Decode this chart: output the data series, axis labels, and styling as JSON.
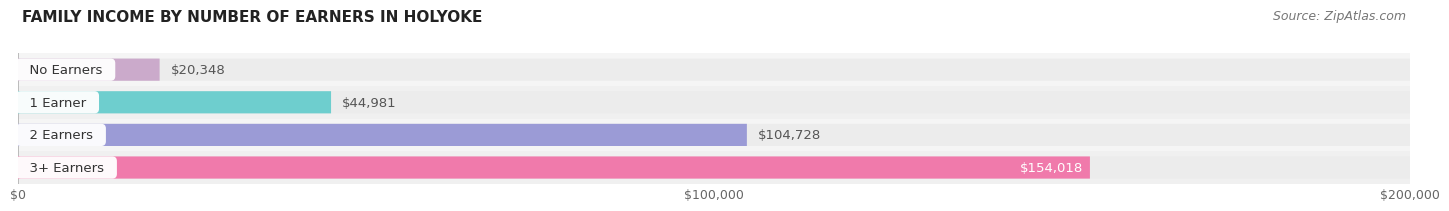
{
  "title": "FAMILY INCOME BY NUMBER OF EARNERS IN HOLYOKE",
  "source": "Source: ZipAtlas.com",
  "categories": [
    "No Earners",
    "1 Earner",
    "2 Earners",
    "3+ Earners"
  ],
  "values": [
    20348,
    44981,
    104728,
    154018
  ],
  "bar_colors": [
    "#cbaacb",
    "#6ecece",
    "#9b9bd6",
    "#f07aab"
  ],
  "bar_bg_color": "#ececec",
  "row_bg_colors": [
    "#f5f5f5",
    "#f0f0f0",
    "#f5f5f5",
    "#f0f0f0"
  ],
  "value_labels": [
    "$20,348",
    "$44,981",
    "$104,728",
    "$154,018"
  ],
  "xlim": [
    0,
    200000
  ],
  "xticks": [
    0,
    100000,
    200000
  ],
  "xtick_labels": [
    "$0",
    "$100,000",
    "$200,000"
  ],
  "title_fontsize": 11,
  "source_fontsize": 9,
  "label_fontsize": 9.5,
  "tick_fontsize": 9,
  "background_color": "#ffffff",
  "bar_height": 0.68,
  "category_label_color": "#333333",
  "value_label_color_outside": "#555555",
  "value_label_color_inside": "#ffffff",
  "inside_threshold": 0.72
}
